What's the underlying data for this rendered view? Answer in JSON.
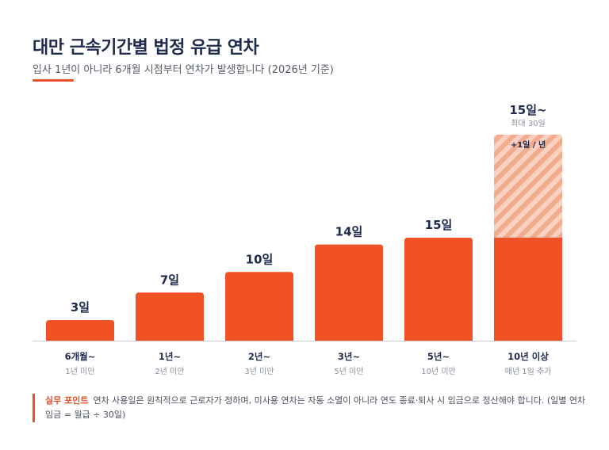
{
  "title": "대만 근속기간별 법정 유급 연차",
  "subtitle": "입사 1년이 아니라 6개월 시점부터 연차가 발생합니다 (2026년 기준)",
  "colors": {
    "bar": "#f05225",
    "accent": "#e8522a",
    "hatch_light": "#f9d1c0",
    "hatch_dark": "#f3ab8d"
  },
  "chart_data": {
    "type": "bar",
    "categories": [
      "6개월~",
      "1년~",
      "2년~",
      "3년~",
      "5년~",
      "10년 이상"
    ],
    "category_sublabels": [
      "1년 미만",
      "2년 미만",
      "3년 미만",
      "5년 미만",
      "10년 미만",
      "매년 1일 추가"
    ],
    "values": [
      3,
      7,
      10,
      14,
      15,
      15
    ],
    "value_labels": [
      "3일",
      "7일",
      "10일",
      "14일",
      "15일",
      "15일~"
    ],
    "extension": {
      "category": "10년 이상",
      "base": 15,
      "max": 30,
      "label": "+1일 / 년",
      "sub_value_label": "최대 30일"
    }
  },
  "note": {
    "tag": "실무 포인트",
    "text": "연차 사용일은 원칙적으로 근로자가 정하며, 미사용 연차는 자동 소멸이 아니라 연도 종료·퇴사 시 임금으로 정산해야 합니다. (일별 연차 임금 = 월급 ÷ 30일)"
  }
}
